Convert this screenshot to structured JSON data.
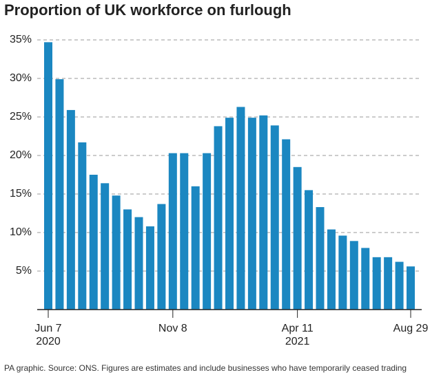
{
  "chart_data": {
    "type": "bar",
    "title": "Proportion of UK workforce on furlough",
    "categories": [
      "Jun 7",
      null,
      null,
      null,
      null,
      null,
      null,
      null,
      null,
      null,
      null,
      "Nov 8",
      null,
      null,
      null,
      null,
      null,
      null,
      null,
      null,
      null,
      null,
      "Apr 11",
      null,
      null,
      null,
      null,
      null,
      null,
      null,
      null,
      null,
      "Aug 29"
    ],
    "category_years": [
      "2020",
      null,
      null,
      null,
      null,
      null,
      null,
      null,
      null,
      null,
      null,
      null,
      null,
      null,
      null,
      null,
      null,
      null,
      null,
      null,
      null,
      null,
      "2021",
      null,
      null,
      null,
      null,
      null,
      null,
      null,
      null,
      null,
      null
    ],
    "values": [
      34.7,
      29.9,
      25.9,
      21.7,
      17.5,
      16.4,
      14.8,
      13.0,
      12.0,
      10.8,
      13.7,
      20.3,
      20.3,
      16.0,
      20.3,
      23.8,
      24.9,
      26.3,
      24.9,
      25.2,
      23.9,
      22.1,
      18.5,
      15.5,
      13.3,
      10.4,
      9.6,
      8.9,
      8.0,
      6.8,
      6.8,
      6.2,
      5.6
    ],
    "color": "#1b87c1",
    "ylim": [
      0,
      35
    ],
    "yticks": [
      {
        "value": 5,
        "label": "5%"
      },
      {
        "value": 10,
        "label": "10%"
      },
      {
        "value": 15,
        "label": "15%"
      },
      {
        "value": 20,
        "label": "20%"
      },
      {
        "value": 25,
        "label": "25%"
      },
      {
        "value": 30,
        "label": "30%"
      },
      {
        "value": 35,
        "label": "35%"
      }
    ],
    "grid": true,
    "source": "PA graphic. Source: ONS. Figures are estimates and include businesses who have temporarily ceased trading"
  }
}
